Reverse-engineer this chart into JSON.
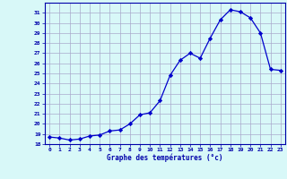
{
  "hours": [
    0,
    1,
    2,
    3,
    4,
    5,
    6,
    7,
    8,
    9,
    10,
    11,
    12,
    13,
    14,
    15,
    16,
    17,
    18,
    19,
    20,
    21,
    22,
    23
  ],
  "temps": [
    18.7,
    18.6,
    18.4,
    18.5,
    18.8,
    18.9,
    19.3,
    19.4,
    20.0,
    20.9,
    21.1,
    22.3,
    24.8,
    26.3,
    27.0,
    26.5,
    28.5,
    30.3,
    31.3,
    31.1,
    30.5,
    29.0,
    25.4,
    25.3
  ],
  "xlabel": "Graphe des températures (°c)",
  "ylim": [
    18,
    32
  ],
  "xlim": [
    -0.5,
    23.5
  ],
  "yticks": [
    18,
    19,
    20,
    21,
    22,
    23,
    24,
    25,
    26,
    27,
    28,
    29,
    30,
    31
  ],
  "xticks": [
    0,
    1,
    2,
    3,
    4,
    5,
    6,
    7,
    8,
    9,
    10,
    11,
    12,
    13,
    14,
    15,
    16,
    17,
    18,
    19,
    20,
    21,
    22,
    23
  ],
  "line_color": "#0000cc",
  "marker_color": "#0000cc",
  "bg_color": "#d8f8f8",
  "grid_color": "#aaaacc",
  "axis_color": "#0000aa",
  "label_color": "#0000aa",
  "tick_color": "#0000aa"
}
